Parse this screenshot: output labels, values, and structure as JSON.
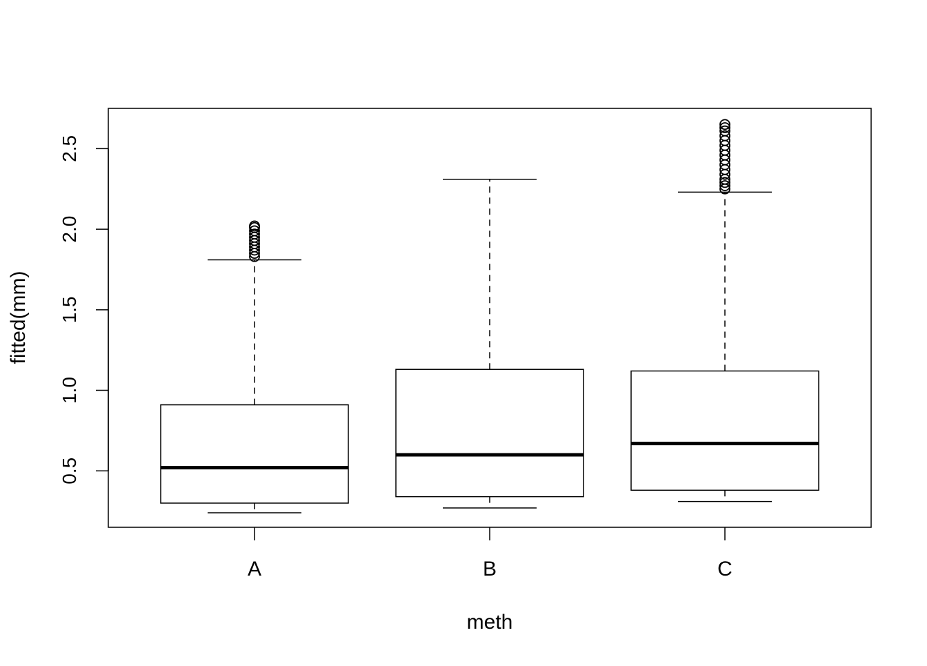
{
  "chart_data": {
    "type": "boxplot",
    "title": "",
    "xlabel": "meth",
    "ylabel": "fitted(mm)",
    "ylim": [
      0.15,
      2.75
    ],
    "yticks": [
      0.5,
      1.0,
      1.5,
      2.0,
      2.5
    ],
    "ytick_labels": [
      "0.5",
      "1.0",
      "1.5",
      "2.0",
      "2.5"
    ],
    "categories": [
      "A",
      "B",
      "C"
    ],
    "grid": false,
    "legend": "none",
    "colors": {
      "line": "#000000",
      "box_fill": "#ffffff",
      "background": "#ffffff"
    },
    "boxes": [
      {
        "category": "A",
        "min": 0.24,
        "q1": 0.3,
        "median": 0.52,
        "q3": 0.91,
        "max": 1.81,
        "outliers": [
          1.83,
          1.85,
          1.87,
          1.89,
          1.91,
          1.93,
          1.95,
          1.97,
          1.99,
          2.01,
          2.02
        ]
      },
      {
        "category": "B",
        "min": 0.27,
        "q1": 0.34,
        "median": 0.6,
        "q3": 1.13,
        "max": 2.31,
        "outliers": []
      },
      {
        "category": "C",
        "min": 0.31,
        "q1": 0.38,
        "median": 0.67,
        "q3": 1.12,
        "max": 2.23,
        "outliers": [
          2.25,
          2.27,
          2.29,
          2.31,
          2.34,
          2.37,
          2.4,
          2.43,
          2.46,
          2.49,
          2.52,
          2.55,
          2.58,
          2.61,
          2.63,
          2.65
        ]
      }
    ]
  }
}
